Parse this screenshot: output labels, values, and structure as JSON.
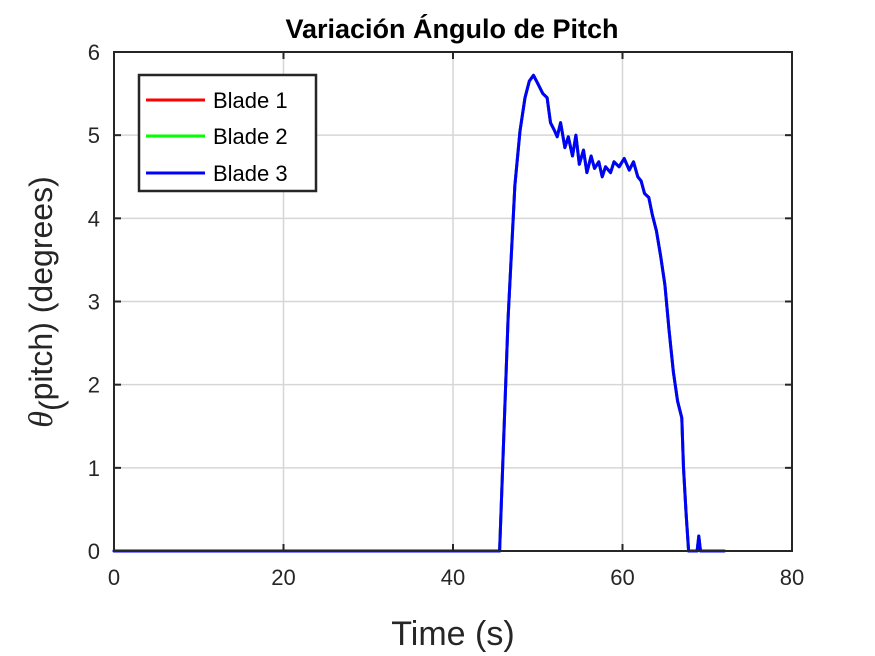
{
  "chart_data": {
    "type": "line",
    "title": "Variación Ángulo de Pitch",
    "xlabel": "Time (s)",
    "ylabel": {
      "symbol": "θ",
      "subscript": "(",
      "rest": "pitch) (degrees)"
    },
    "xlim": [
      0,
      80
    ],
    "ylim": [
      0,
      6
    ],
    "xticks": [
      0,
      20,
      40,
      60,
      80
    ],
    "yticks": [
      0,
      1,
      2,
      3,
      4,
      5,
      6
    ],
    "xtick_labels": [
      "0",
      "20",
      "40",
      "60",
      "80"
    ],
    "ytick_labels": [
      "0",
      "1",
      "2",
      "3",
      "4",
      "5",
      "6"
    ],
    "grid": true,
    "legend_position": "top-left",
    "series": [
      {
        "name": "Blade 1",
        "color": "#ff0000",
        "x": [
          0,
          45.5,
          46.5,
          47.3,
          47.9,
          48.5,
          49.0,
          49.5,
          50.0,
          50.6,
          51.1,
          51.5,
          52.0,
          52.3,
          52.7,
          53.2,
          53.6,
          54.1,
          54.5,
          54.9,
          55.4,
          55.8,
          56.3,
          56.7,
          57.2,
          57.6,
          58.0,
          58.6,
          59.0,
          59.6,
          60.2,
          60.8,
          61.3,
          61.8,
          62.2,
          62.6,
          63.1,
          63.5,
          64.0,
          64.5,
          65.0,
          65.5,
          66.0,
          66.5,
          67.0,
          67.2,
          67.5,
          67.8,
          68.0,
          68.3,
          68.8,
          69.0,
          69.2,
          69.3,
          72.0
        ],
        "y": [
          0,
          0,
          2.8,
          4.4,
          5.05,
          5.45,
          5.65,
          5.72,
          5.62,
          5.5,
          5.45,
          5.15,
          5.05,
          4.98,
          5.15,
          4.85,
          4.98,
          4.75,
          5.0,
          4.65,
          4.82,
          4.55,
          4.75,
          4.6,
          4.68,
          4.5,
          4.62,
          4.55,
          4.68,
          4.62,
          4.72,
          4.58,
          4.68,
          4.5,
          4.45,
          4.3,
          4.25,
          4.05,
          3.85,
          3.55,
          3.2,
          2.65,
          2.15,
          1.8,
          1.6,
          1.0,
          0.45,
          0.0,
          0.0,
          0.0,
          0.0,
          0.18,
          0.0,
          0.0,
          0.0
        ]
      },
      {
        "name": "Blade 2",
        "color": "#00ff00",
        "x": [
          0,
          45.5,
          46.5,
          47.3,
          47.9,
          48.5,
          49.0,
          49.5,
          50.0,
          50.6,
          51.1,
          51.5,
          52.0,
          52.3,
          52.7,
          53.2,
          53.6,
          54.1,
          54.5,
          54.9,
          55.4,
          55.8,
          56.3,
          56.7,
          57.2,
          57.6,
          58.0,
          58.6,
          59.0,
          59.6,
          60.2,
          60.8,
          61.3,
          61.8,
          62.2,
          62.6,
          63.1,
          63.5,
          64.0,
          64.5,
          65.0,
          65.5,
          66.0,
          66.5,
          67.0,
          67.2,
          67.5,
          67.8,
          68.0,
          68.3,
          68.8,
          69.0,
          69.2,
          69.3,
          72.0
        ],
        "y": [
          0,
          0,
          2.8,
          4.4,
          5.05,
          5.45,
          5.65,
          5.72,
          5.62,
          5.5,
          5.45,
          5.15,
          5.05,
          4.98,
          5.15,
          4.85,
          4.98,
          4.75,
          5.0,
          4.65,
          4.82,
          4.55,
          4.75,
          4.6,
          4.68,
          4.5,
          4.62,
          4.55,
          4.68,
          4.62,
          4.72,
          4.58,
          4.68,
          4.5,
          4.45,
          4.3,
          4.25,
          4.05,
          3.85,
          3.55,
          3.2,
          2.65,
          2.15,
          1.8,
          1.6,
          1.0,
          0.45,
          0.0,
          0.0,
          0.0,
          0.0,
          0.18,
          0.0,
          0.0,
          0.0
        ]
      },
      {
        "name": "Blade 3",
        "color": "#0000ff",
        "x": [
          0,
          45.5,
          46.5,
          47.3,
          47.9,
          48.5,
          49.0,
          49.5,
          50.0,
          50.6,
          51.1,
          51.5,
          52.0,
          52.3,
          52.7,
          53.2,
          53.6,
          54.1,
          54.5,
          54.9,
          55.4,
          55.8,
          56.3,
          56.7,
          57.2,
          57.6,
          58.0,
          58.6,
          59.0,
          59.6,
          60.2,
          60.8,
          61.3,
          61.8,
          62.2,
          62.6,
          63.1,
          63.5,
          64.0,
          64.5,
          65.0,
          65.5,
          66.0,
          66.5,
          67.0,
          67.2,
          67.5,
          67.8,
          68.0,
          68.3,
          68.8,
          69.0,
          69.2,
          69.3,
          72.0
        ],
        "y": [
          0,
          0,
          2.8,
          4.4,
          5.05,
          5.45,
          5.65,
          5.72,
          5.62,
          5.5,
          5.45,
          5.15,
          5.05,
          4.98,
          5.15,
          4.85,
          4.98,
          4.75,
          5.0,
          4.65,
          4.82,
          4.55,
          4.75,
          4.6,
          4.68,
          4.5,
          4.62,
          4.55,
          4.68,
          4.62,
          4.72,
          4.58,
          4.68,
          4.5,
          4.45,
          4.3,
          4.25,
          4.05,
          3.85,
          3.55,
          3.2,
          2.65,
          2.15,
          1.8,
          1.6,
          1.0,
          0.45,
          0.0,
          0.0,
          0.0,
          0.0,
          0.18,
          0.0,
          0.0,
          0.0
        ]
      }
    ]
  }
}
